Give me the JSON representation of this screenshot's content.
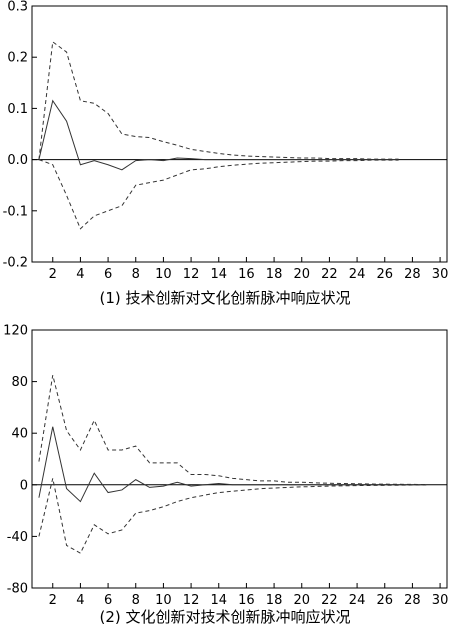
{
  "chart_data": [
    {
      "type": "line",
      "caption": "(1) 技术创新对文化创新脉冲响应状况",
      "x": [
        1,
        2,
        3,
        4,
        5,
        6,
        7,
        8,
        9,
        10,
        11,
        12,
        13,
        14,
        15,
        16,
        17,
        18,
        19,
        20,
        21,
        22,
        23,
        24,
        25,
        26,
        27
      ],
      "xticks": [
        2,
        4,
        6,
        8,
        10,
        12,
        14,
        16,
        18,
        20,
        22,
        24,
        26,
        28,
        30
      ],
      "xlim": [
        0.5,
        30.5
      ],
      "ylim": [
        -0.2,
        0.3
      ],
      "yticks": [
        -0.2,
        -0.1,
        0.0,
        0.1,
        0.2,
        0.3
      ],
      "ytick_labels": [
        "-0.2",
        "-0.1",
        "0.0",
        "0.1",
        "0.2",
        "0.3"
      ],
      "zero_line": true,
      "series": [
        {
          "style": "solid",
          "values": [
            0.0,
            0.115,
            0.075,
            -0.01,
            -0.002,
            -0.01,
            -0.02,
            -0.002,
            0.0,
            -0.002,
            0.003,
            0.002,
            0.0,
            0.0,
            0.0,
            0.0,
            0.0,
            0.0,
            0.0,
            0.0,
            0.0,
            0.0,
            0.0,
            0.0,
            0.0,
            0.0,
            0.0
          ]
        },
        {
          "style": "dashed",
          "values": [
            0.0,
            0.23,
            0.21,
            0.115,
            0.11,
            0.09,
            0.05,
            0.045,
            0.043,
            0.035,
            0.028,
            0.02,
            0.016,
            0.012,
            0.009,
            0.007,
            0.006,
            0.005,
            0.004,
            0.003,
            0.003,
            0.002,
            0.002,
            0.002,
            0.001,
            0.001,
            0.001
          ]
        },
        {
          "style": "dashed",
          "values": [
            0.0,
            -0.01,
            -0.07,
            -0.135,
            -0.11,
            -0.1,
            -0.09,
            -0.05,
            -0.045,
            -0.04,
            -0.03,
            -0.02,
            -0.018,
            -0.014,
            -0.011,
            -0.009,
            -0.007,
            -0.006,
            -0.005,
            -0.004,
            -0.003,
            -0.003,
            -0.002,
            -0.002,
            -0.001,
            -0.001,
            -0.001
          ]
        }
      ]
    },
    {
      "type": "line",
      "caption": "(2) 文化创新对技术创新脉冲响应状况",
      "x": [
        1,
        2,
        3,
        4,
        5,
        6,
        7,
        8,
        9,
        10,
        11,
        12,
        13,
        14,
        15,
        16,
        17,
        18,
        19,
        20,
        21,
        22,
        23,
        24,
        25,
        26,
        27,
        28,
        29
      ],
      "xticks": [
        2,
        4,
        6,
        8,
        10,
        12,
        14,
        16,
        18,
        20,
        22,
        24,
        26,
        28,
        30
      ],
      "xlim": [
        0.5,
        30.5
      ],
      "ylim": [
        -80,
        120
      ],
      "yticks": [
        -80,
        -40,
        0,
        40,
        80,
        120
      ],
      "ytick_labels": [
        "-80",
        "-40",
        "0",
        "40",
        "80",
        "120"
      ],
      "zero_line": true,
      "series": [
        {
          "style": "solid",
          "values": [
            -10,
            45,
            -3,
            -13,
            9,
            -6,
            -4,
            4,
            -2,
            -1,
            2,
            -1,
            0,
            1,
            0,
            0,
            0,
            0,
            0,
            0,
            0,
            0,
            0,
            0,
            0,
            0,
            0,
            0,
            0
          ]
        },
        {
          "style": "dashed",
          "values": [
            18,
            85,
            42,
            27,
            50,
            27,
            27,
            30,
            17,
            17,
            17,
            8,
            8,
            7,
            5,
            4,
            3,
            3,
            2,
            2,
            1.5,
            1.2,
            1,
            0.8,
            0.6,
            0.5,
            0.4,
            0.3,
            0.2
          ]
        },
        {
          "style": "dashed",
          "values": [
            -40,
            5,
            -47,
            -53,
            -31,
            -38,
            -35,
            -22,
            -20,
            -17,
            -13,
            -10,
            -8,
            -6,
            -5,
            -4,
            -3,
            -2.5,
            -2,
            -1.6,
            -1.3,
            -1,
            -0.8,
            -0.6,
            -0.5,
            -0.4,
            -0.3,
            -0.2,
            -0.1
          ]
        }
      ]
    }
  ]
}
